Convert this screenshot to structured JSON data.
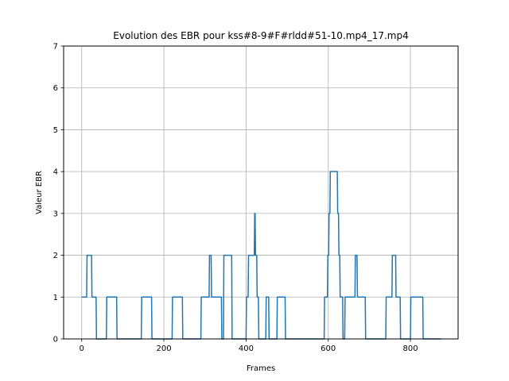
{
  "chart_data": {
    "type": "line",
    "title": "Evolution des EBR pour kss#8-9#F#rldd#51-10.mp4_17.mp4",
    "xlabel": "Frames",
    "ylabel": "Valeur EBR",
    "xlim": [
      -44,
      916
    ],
    "ylim": [
      0,
      7
    ],
    "xticks": [
      0,
      200,
      400,
      600,
      800
    ],
    "yticks": [
      0,
      1,
      2,
      3,
      4,
      5,
      6,
      7
    ],
    "grid": true,
    "line_color": "#1f77b4",
    "series": [
      {
        "name": "",
        "x": [
          0,
          12,
          13,
          24,
          25,
          35,
          36,
          60,
          61,
          85,
          86,
          145,
          146,
          170,
          171,
          220,
          221,
          245,
          246,
          290,
          291,
          310,
          311,
          315,
          316,
          320,
          321,
          340,
          341,
          345,
          346,
          365,
          366,
          400,
          401,
          405,
          406,
          420,
          421,
          422,
          423,
          426,
          427,
          430,
          431,
          448,
          449,
          455,
          456,
          475,
          476,
          495,
          496,
          520,
          521,
          590,
          591,
          598,
          599,
          601,
          602,
          604,
          605,
          606,
          607,
          622,
          623,
          625,
          626,
          628,
          629,
          635,
          636,
          640,
          641,
          665,
          666,
          670,
          671,
          690,
          691,
          715,
          716,
          740,
          741,
          755,
          756,
          764,
          765,
          775,
          776,
          800,
          801,
          830,
          831,
          875
        ],
        "y": [
          1,
          1,
          2,
          2,
          1,
          1,
          0,
          0,
          1,
          1,
          0,
          0,
          1,
          1,
          0,
          0,
          1,
          1,
          0,
          0,
          1,
          1,
          2,
          2,
          1,
          1,
          1,
          1,
          0,
          0,
          2,
          2,
          0,
          0,
          1,
          1,
          2,
          2,
          3,
          3,
          2,
          2,
          1,
          1,
          0,
          0,
          1,
          1,
          0,
          0,
          1,
          1,
          0,
          0,
          0,
          0,
          1,
          1,
          2,
          2,
          3,
          3,
          4,
          4,
          4,
          4,
          3,
          3,
          2,
          2,
          1,
          1,
          0,
          0,
          1,
          1,
          2,
          2,
          1,
          1,
          0,
          0,
          0,
          0,
          1,
          1,
          2,
          2,
          1,
          1,
          0,
          0,
          1,
          1,
          0,
          0
        ]
      }
    ]
  }
}
